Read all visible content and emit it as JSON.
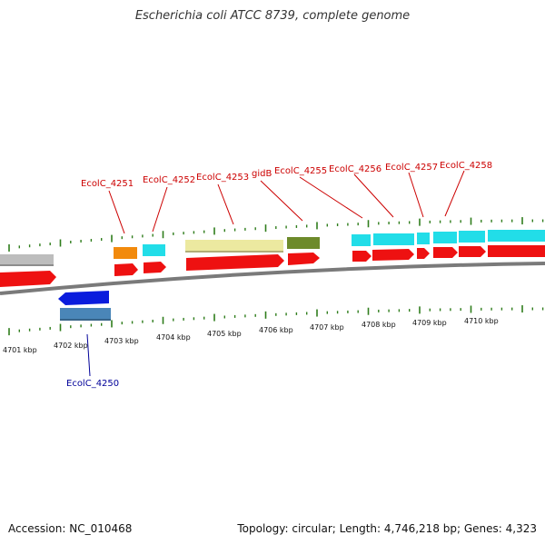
{
  "title": "Escherichia coli ATCC 8739, complete genome",
  "footer": {
    "accession": "Accession: NC_010468",
    "info": "Topology: circular; Length: 4,746,218 bp; Genes: 4,323"
  },
  "colors": {
    "cds_forward": "#ee1111",
    "cds_reverse": "#0a1cdd",
    "tick": "#2f7d1c",
    "backbone": "#888888",
    "label_forward": "#cc0000",
    "label_reverse": "#000099",
    "cog_cyan": "#22dde8",
    "cog_orange": "#f28a0c",
    "cog_khaki": "#ece9a0",
    "cog_olive": "#6d8a2a",
    "cog_gray": "#bdbdbd",
    "cog_steel": "#4a86b8"
  },
  "scale": {
    "unit": "kbp",
    "labels": [
      "4701 kbp",
      "4702 kbp",
      "4703 kbp",
      "4704 kbp",
      "4705 kbp",
      "4706 kbp",
      "4707 kbp",
      "4708 kbp",
      "4709 kbp",
      "4710 kbp"
    ]
  },
  "gene_labels": {
    "forward": [
      "EcolC_4251",
      "EcolC_4252",
      "EcolC_4253",
      "gidB",
      "EcolC_4255",
      "EcolC_4256",
      "EcolC_4257",
      "EcolC_4258"
    ],
    "reverse": [
      "EcolC_4250"
    ]
  }
}
